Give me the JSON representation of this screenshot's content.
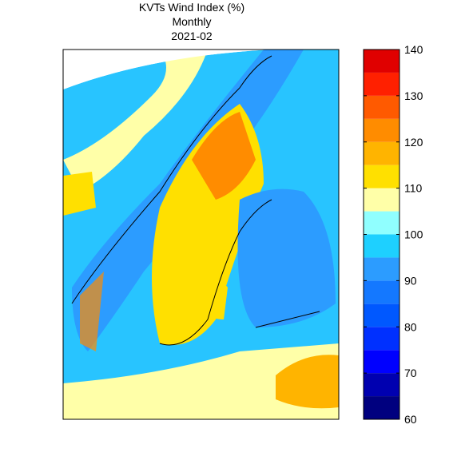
{
  "header": {
    "title": "KVTs Wind Index (%)",
    "subtitle": "Monthly",
    "period": "2021-02"
  },
  "colorbar": {
    "bins": [
      60,
      65,
      70,
      75,
      80,
      85,
      90,
      95,
      100,
      105,
      110,
      115,
      120,
      125,
      130,
      135,
      140
    ],
    "colors": [
      "#00007f",
      "#0000b0",
      "#0000ff",
      "#0030ff",
      "#0058ff",
      "#1478ff",
      "#2c9cff",
      "#1ed0ff",
      "#90ffff",
      "#ffffa8",
      "#ffe000",
      "#ffb400",
      "#ff8c00",
      "#ff5a00",
      "#ff2000",
      "#e00000",
      "#a00000"
    ],
    "ticks": [
      60,
      70,
      80,
      90,
      100,
      110,
      120,
      130,
      140
    ]
  }
}
